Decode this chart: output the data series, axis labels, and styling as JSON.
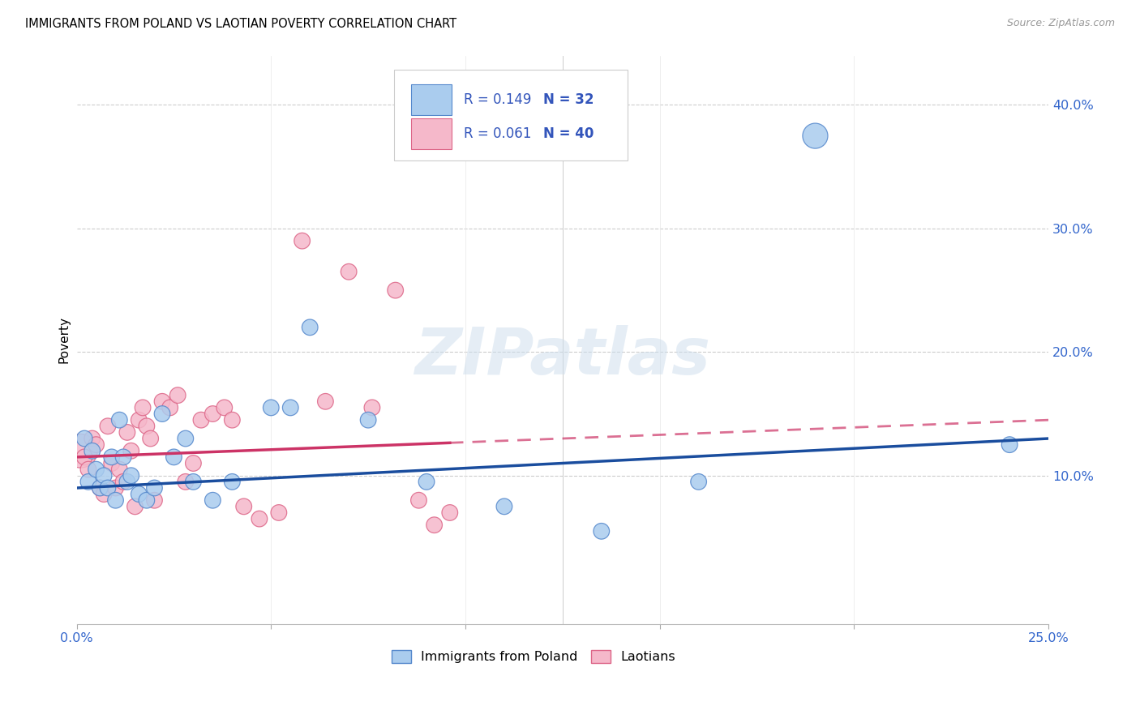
{
  "title": "IMMIGRANTS FROM POLAND VS LAOTIAN POVERTY CORRELATION CHART",
  "source": "Source: ZipAtlas.com",
  "ylabel": "Poverty",
  "ytick_labels": [
    "10.0%",
    "20.0%",
    "30.0%",
    "40.0%"
  ],
  "ytick_vals": [
    0.1,
    0.2,
    0.3,
    0.4
  ],
  "xlim": [
    0.0,
    0.25
  ],
  "ylim": [
    -0.02,
    0.44
  ],
  "legend_r1": "R = 0.149",
  "legend_n1": "N = 32",
  "legend_r2": "R = 0.061",
  "legend_n2": "N = 40",
  "series1_color": "#aaccee",
  "series1_edge": "#5588cc",
  "series2_color": "#f5b8ca",
  "series2_edge": "#dd6688",
  "trendline1_color": "#1a4d9e",
  "trendline2_color": "#cc3366",
  "watermark_color": "#ccdded",
  "legend_text_color": "#3355bb",
  "legend_n_color": "#3355bb",
  "poland_x": [
    0.002,
    0.003,
    0.004,
    0.005,
    0.006,
    0.007,
    0.008,
    0.009,
    0.01,
    0.011,
    0.012,
    0.013,
    0.014,
    0.016,
    0.018,
    0.02,
    0.022,
    0.025,
    0.028,
    0.03,
    0.035,
    0.04,
    0.05,
    0.055,
    0.06,
    0.075,
    0.09,
    0.11,
    0.135,
    0.16,
    0.19,
    0.24
  ],
  "poland_y": [
    0.13,
    0.095,
    0.12,
    0.105,
    0.09,
    0.1,
    0.09,
    0.115,
    0.08,
    0.145,
    0.115,
    0.095,
    0.1,
    0.085,
    0.08,
    0.09,
    0.15,
    0.115,
    0.13,
    0.095,
    0.08,
    0.095,
    0.155,
    0.155,
    0.22,
    0.145,
    0.095,
    0.075,
    0.055,
    0.095,
    0.375,
    0.125
  ],
  "laotian_x": [
    0.001,
    0.002,
    0.003,
    0.004,
    0.005,
    0.006,
    0.007,
    0.008,
    0.009,
    0.01,
    0.011,
    0.012,
    0.013,
    0.014,
    0.015,
    0.016,
    0.017,
    0.018,
    0.019,
    0.02,
    0.022,
    0.024,
    0.026,
    0.028,
    0.03,
    0.032,
    0.035,
    0.038,
    0.04,
    0.043,
    0.047,
    0.052,
    0.058,
    0.064,
    0.07,
    0.076,
    0.082,
    0.088,
    0.092,
    0.096
  ],
  "laotian_y": [
    0.12,
    0.115,
    0.105,
    0.13,
    0.125,
    0.09,
    0.085,
    0.14,
    0.11,
    0.09,
    0.105,
    0.095,
    0.135,
    0.12,
    0.075,
    0.145,
    0.155,
    0.14,
    0.13,
    0.08,
    0.16,
    0.155,
    0.165,
    0.095,
    0.11,
    0.145,
    0.15,
    0.155,
    0.145,
    0.075,
    0.065,
    0.07,
    0.29,
    0.16,
    0.265,
    0.155,
    0.25,
    0.08,
    0.06,
    0.07
  ],
  "laotian_sizes": [
    900,
    200,
    200,
    200,
    200,
    200,
    200,
    200,
    200,
    200,
    200,
    200,
    200,
    200,
    200,
    200,
    200,
    200,
    200,
    200,
    200,
    200,
    200,
    200,
    200,
    200,
    200,
    200,
    200,
    200,
    200,
    200,
    200,
    200,
    200,
    200,
    200,
    200,
    200,
    200
  ],
  "poland_sizes": [
    200,
    200,
    200,
    200,
    200,
    200,
    200,
    200,
    200,
    200,
    200,
    200,
    200,
    200,
    200,
    200,
    200,
    200,
    200,
    200,
    200,
    200,
    200,
    200,
    200,
    200,
    200,
    200,
    200,
    200,
    500,
    200
  ],
  "trendline1_start": 0.0,
  "trendline1_end": 0.25,
  "trendline2_solid_end": 0.096,
  "trendline2_dashed_end": 0.25
}
